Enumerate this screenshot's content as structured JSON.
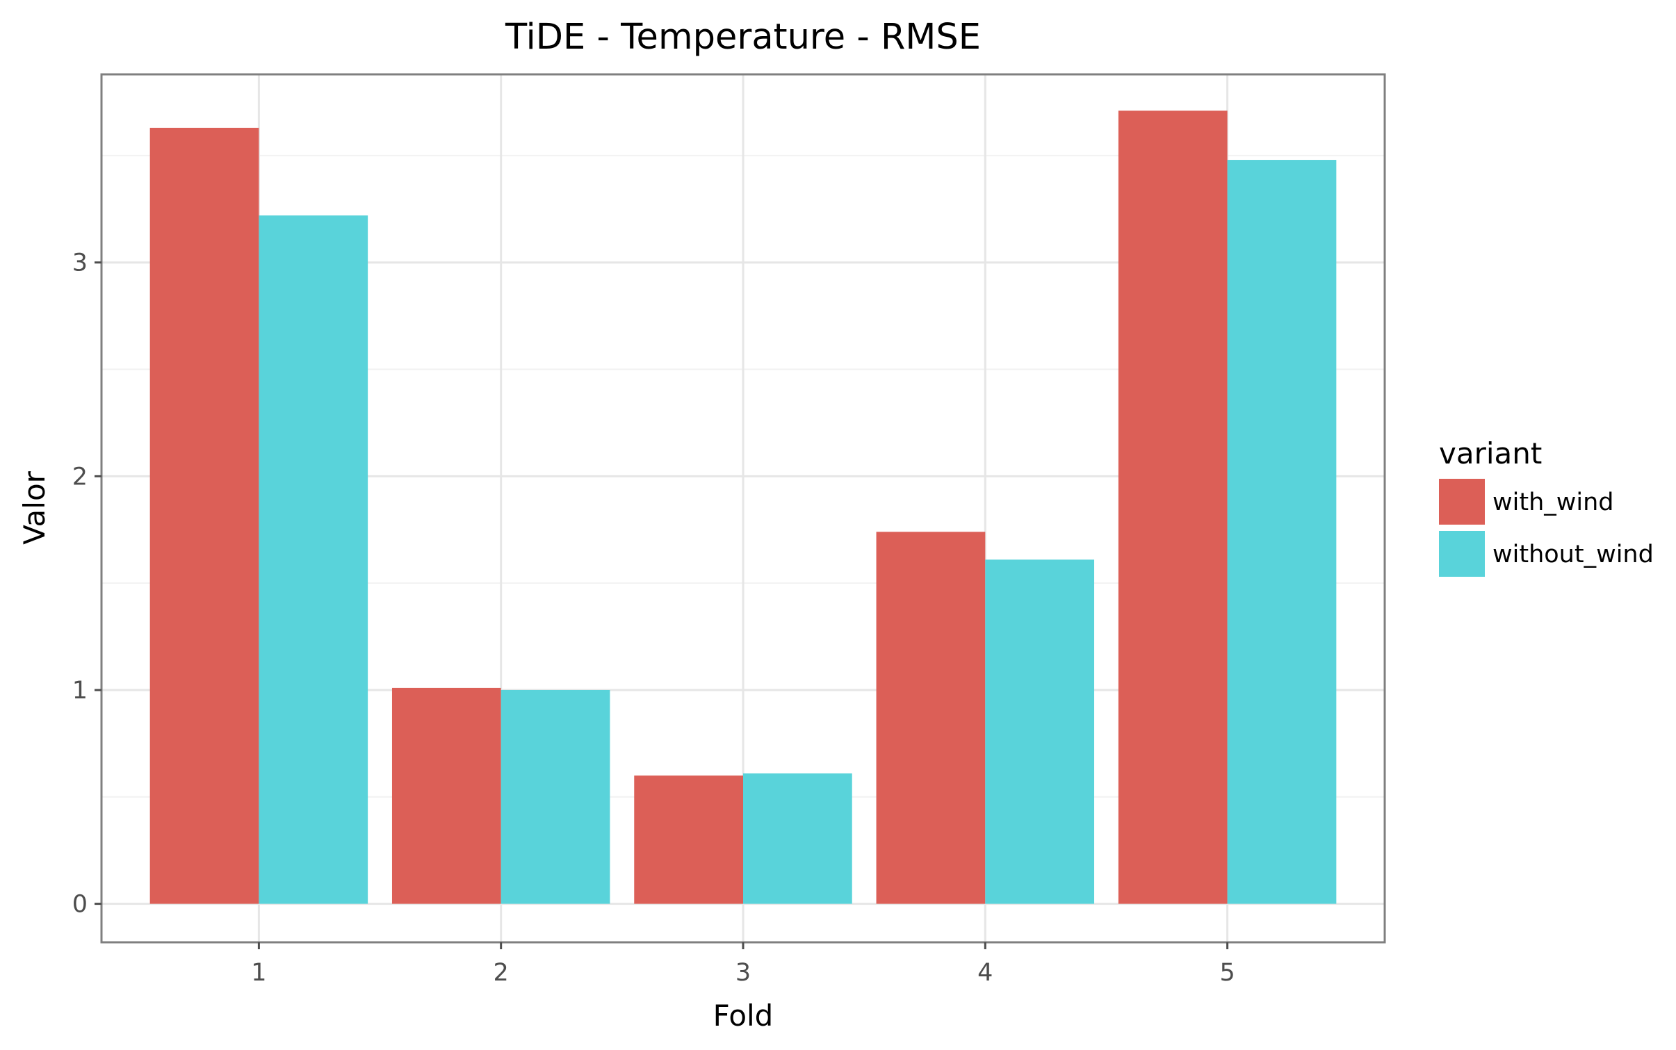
{
  "chart_data": {
    "type": "bar",
    "title": "TiDE - Temperature - RMSE",
    "xlabel": "Fold",
    "ylabel": "Valor",
    "categories": [
      "1",
      "2",
      "3",
      "4",
      "5"
    ],
    "yticks": [
      "0",
      "1",
      "2",
      "3"
    ],
    "ylim": [
      -0.18,
      3.88
    ],
    "grid": true,
    "legend": {
      "title": "variant",
      "placement": "right"
    },
    "series": [
      {
        "name": "with_wind",
        "color": "#dc5f57",
        "values": [
          3.63,
          1.01,
          0.6,
          1.74,
          3.71
        ]
      },
      {
        "name": "without_wind",
        "color": "#59d3da",
        "values": [
          3.22,
          1.0,
          0.61,
          1.61,
          3.48
        ]
      }
    ]
  }
}
